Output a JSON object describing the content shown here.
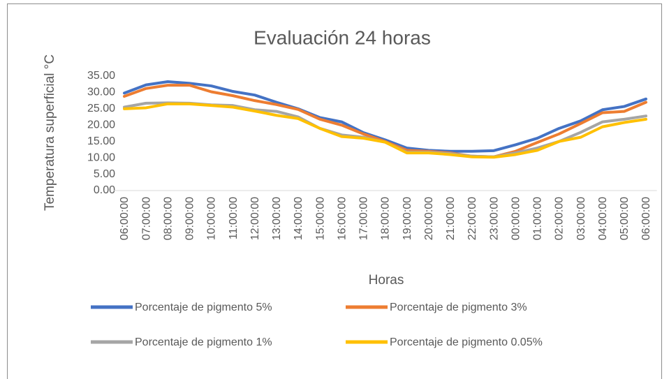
{
  "chart_data": {
    "type": "line",
    "title": "Evaluación 24 horas",
    "x_label": "Horas",
    "y_label": "Temperatura superficial °C",
    "categories": [
      "06:00:00",
      "07:00:00",
      "08:00:00",
      "09:00:00",
      "10:00:00",
      "11:00:00",
      "12:00:00",
      "13:00:00",
      "14:00:00",
      "15:00:00",
      "16:00:00",
      "17:00:00",
      "18:00:00",
      "19:00:00",
      "20:00:00",
      "21:00:00",
      "22:00:00",
      "23:00:00",
      "00:00:00",
      "01:00:00",
      "02:00:00",
      "03:00:00",
      "04:00:00",
      "05:00:00",
      "06:00:00"
    ],
    "series": [
      {
        "name": "Porcentaje de pigmento 5%",
        "color": "#4472c4",
        "values": [
          29.8,
          32.3,
          33.3,
          32.8,
          32.0,
          30.3,
          29.2,
          27.0,
          25.0,
          22.3,
          21.0,
          17.7,
          15.5,
          13.0,
          12.3,
          12.0,
          12.0,
          12.2,
          14.0,
          16.0,
          19.0,
          21.3,
          24.7,
          25.7,
          28.0
        ]
      },
      {
        "name": "Porcentaje de pigmento 3%",
        "color": "#ed7d31",
        "values": [
          28.8,
          31.2,
          32.2,
          32.2,
          30.2,
          29.0,
          27.5,
          26.3,
          24.8,
          21.8,
          20.0,
          17.3,
          15.0,
          12.3,
          12.0,
          11.5,
          10.5,
          10.3,
          12.0,
          14.7,
          17.3,
          20.5,
          23.8,
          24.2,
          27.0
        ]
      },
      {
        "name": "Porcentaje de pigmento 1%",
        "color": "#a5a5a5",
        "values": [
          25.5,
          26.7,
          26.8,
          26.7,
          26.2,
          26.0,
          24.7,
          24.2,
          22.5,
          19.0,
          17.0,
          16.3,
          14.8,
          11.7,
          11.7,
          11.3,
          10.5,
          10.3,
          11.5,
          13.0,
          15.0,
          17.8,
          21.0,
          21.8,
          22.8
        ]
      },
      {
        "name": "Porcentaje de pigmento 0.05%",
        "color": "#ffc000",
        "values": [
          25.0,
          25.3,
          26.5,
          26.5,
          26.0,
          25.5,
          24.3,
          23.0,
          22.0,
          19.0,
          16.5,
          16.0,
          14.8,
          11.5,
          11.5,
          11.0,
          10.3,
          10.2,
          11.0,
          12.3,
          15.0,
          16.3,
          19.5,
          20.8,
          21.8
        ]
      }
    ],
    "ylim": [
      0,
      35
    ],
    "yticks": [
      {
        "value": 0,
        "label": "0.00"
      },
      {
        "value": 5,
        "label": "5.00"
      },
      {
        "value": 10,
        "label": "10.00"
      },
      {
        "value": 15,
        "label": "15.00"
      },
      {
        "value": 20,
        "label": "20.00"
      },
      {
        "value": 25,
        "label": "25.00"
      },
      {
        "value": 30,
        "label": "30.00"
      },
      {
        "value": 35,
        "label": "35.00"
      }
    ],
    "grid": false,
    "legend": "bottom"
  }
}
